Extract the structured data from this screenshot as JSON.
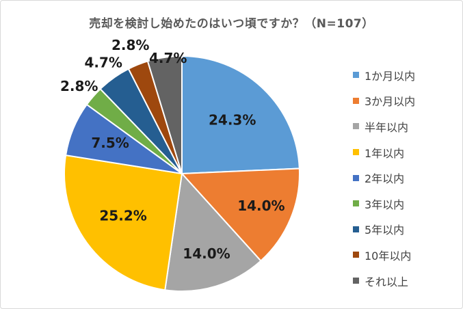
{
  "chart_data": {
    "type": "pie",
    "title": "売却を検討し始めたのはいつ頃ですか？（N=107）",
    "categories": [
      "1か月以内",
      "3か月以内",
      "半年以内",
      "1年以内",
      "2年以内",
      "3年以内",
      "5年以内",
      "10年以内",
      "それ以上"
    ],
    "values": [
      24.3,
      14.0,
      14.0,
      25.2,
      7.5,
      2.8,
      4.7,
      2.8,
      4.7
    ],
    "labels": [
      "24.3%",
      "14.0%",
      "14.0%",
      "25.2%",
      "7.5%",
      "2.8%",
      "4.7%",
      "2.8%",
      "4.7%"
    ],
    "colors": [
      "#5b9bd5",
      "#ed7d31",
      "#a5a5a5",
      "#ffc000",
      "#4472c4",
      "#70ad47",
      "#255e91",
      "#9e480e",
      "#636363"
    ],
    "legend_position": "right"
  }
}
